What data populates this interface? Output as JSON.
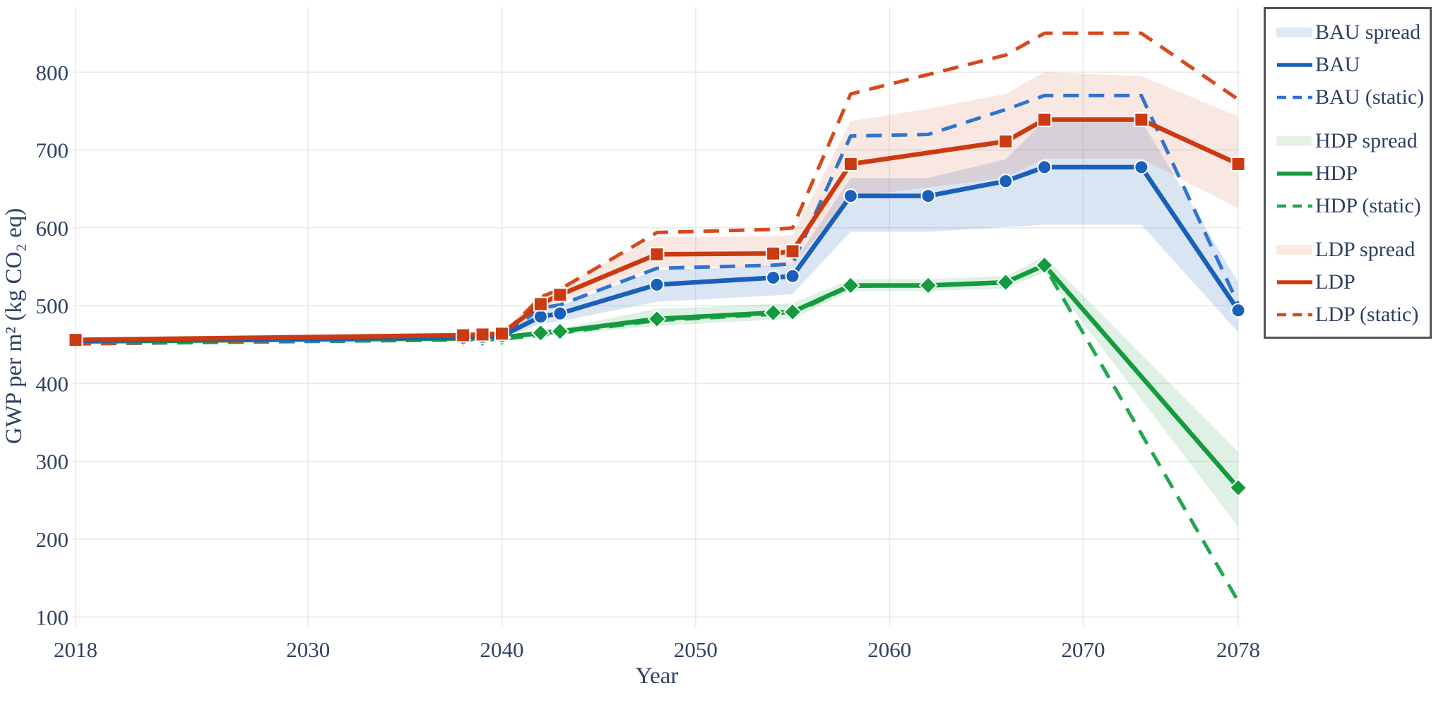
{
  "chart_data": {
    "type": "line",
    "title": "",
    "xlabel": "Year",
    "ylabel": "GWP per m² (kg CO₂ eq)",
    "x_ticks": [
      "2018",
      "2030",
      "2040",
      "2050",
      "2060",
      "2070",
      "2078"
    ],
    "x_tick_years": [
      2018,
      2030,
      2040,
      2050,
      2060,
      2070,
      2078
    ],
    "y_ticks": [
      100,
      200,
      300,
      400,
      500,
      600,
      700,
      800
    ],
    "xlim": [
      2018,
      2078
    ],
    "ylim": [
      85,
      885
    ],
    "grid": true,
    "legend_position": "top-right",
    "colors": {
      "bau": "#1a60ba",
      "bau_dashed": "#2f74d0",
      "bau_band_fill": "rgba(26,96,186,0.16)",
      "bau_band_swatch": "#dde9f7",
      "hdp": "#149b3d",
      "hdp_dashed": "#21a74e",
      "hdp_band_fill": "rgba(20,155,61,0.14)",
      "hdp_band_swatch": "#e3f2e7",
      "ldp": "#cb3a10",
      "ldp_dashed": "#d6491d",
      "ldp_band_fill": "rgba(203,58,16,0.12)",
      "ldp_band_swatch": "#fbe8e1"
    },
    "bands": [
      {
        "name": "BAU spread",
        "series": "bau",
        "x": [
          2018,
          2038,
          2039,
          2040,
          2042,
          2043,
          2048,
          2054,
          2055,
          2058,
          2062,
          2066,
          2068,
          2073,
          2078
        ],
        "upper": [
          458,
          463,
          464,
          466,
          496,
          500,
          546,
          551,
          553,
          664,
          664,
          688,
          738,
          738,
          530
        ],
        "lower": [
          452,
          455,
          456,
          457,
          477,
          480,
          505,
          513,
          515,
          595,
          595,
          601,
          604,
          604,
          466
        ]
      },
      {
        "name": "HDP spread",
        "series": "hdp",
        "x": [
          2018,
          2038,
          2039,
          2040,
          2042,
          2043,
          2048,
          2054,
          2055,
          2058,
          2062,
          2066,
          2068,
          2078
        ],
        "upper": [
          456,
          460,
          460,
          461,
          469,
          471,
          496,
          502,
          503,
          534,
          534,
          538,
          563,
          312
        ],
        "lower": [
          452,
          455,
          455,
          456,
          461,
          463,
          474,
          482,
          483,
          519,
          519,
          522,
          543,
          216
        ]
      },
      {
        "name": "LDP spread",
        "series": "ldp",
        "x": [
          2018,
          2038,
          2039,
          2040,
          2042,
          2043,
          2048,
          2054,
          2055,
          2058,
          2062,
          2066,
          2068,
          2073,
          2078
        ],
        "upper": [
          459,
          466,
          467,
          468,
          512,
          524,
          588,
          589,
          591,
          737,
          753,
          772,
          800,
          795,
          743
        ],
        "lower": [
          453,
          458,
          459,
          460,
          493,
          504,
          549,
          550,
          552,
          640,
          652,
          664,
          689,
          689,
          625
        ]
      }
    ],
    "lines_dashed": [
      {
        "name": "HDP (static)",
        "series": "hdp",
        "x": [
          2018,
          2038,
          2039,
          2040,
          2042,
          2043,
          2048,
          2054,
          2055,
          2058,
          2062,
          2066,
          2068,
          2078
        ],
        "y": [
          451,
          456,
          456,
          457,
          462,
          465,
          481,
          489,
          490,
          525,
          526,
          530,
          551,
          120
        ]
      },
      {
        "name": "BAU (static)",
        "series": "bau",
        "x": [
          2018,
          2038,
          2039,
          2040,
          2042,
          2043,
          2048,
          2054,
          2055,
          2058,
          2062,
          2066,
          2068,
          2073,
          2078
        ],
        "y": [
          451,
          457,
          458,
          459,
          497,
          501,
          548,
          552,
          554,
          718,
          720,
          752,
          770,
          770,
          502
        ]
      },
      {
        "name": "LDP (static)",
        "series": "ldp",
        "x": [
          2018,
          2038,
          2039,
          2040,
          2042,
          2043,
          2048,
          2054,
          2055,
          2058,
          2066,
          2068,
          2073,
          2078
        ],
        "y": [
          451,
          459,
          460,
          461,
          511,
          521,
          594,
          598,
          600,
          772,
          822,
          850,
          850,
          765
        ]
      }
    ],
    "lines_solid": [
      {
        "name": "HDP",
        "series": "hdp",
        "marker": "diamond",
        "x": [
          2018,
          2038,
          2039,
          2040,
          2042,
          2043,
          2048,
          2054,
          2055,
          2058,
          2062,
          2066,
          2068,
          2078
        ],
        "y": [
          454,
          458,
          458,
          459,
          465,
          467,
          483,
          491,
          492,
          526,
          526,
          530,
          552,
          266
        ]
      },
      {
        "name": "BAU",
        "series": "bau",
        "marker": "circle",
        "x": [
          2018,
          2038,
          2039,
          2040,
          2042,
          2043,
          2048,
          2054,
          2055,
          2058,
          2062,
          2066,
          2068,
          2073,
          2078
        ],
        "y": [
          455,
          459,
          460,
          461,
          486,
          490,
          527,
          536,
          538,
          641,
          641,
          660,
          678,
          678,
          494
        ]
      },
      {
        "name": "LDP",
        "series": "ldp",
        "marker": "square",
        "x": [
          2018,
          2038,
          2039,
          2040,
          2042,
          2043,
          2048,
          2054,
          2055,
          2058,
          2066,
          2068,
          2073,
          2078
        ],
        "y": [
          456,
          462,
          463,
          464,
          502,
          514,
          566,
          567,
          570,
          682,
          711,
          739,
          739,
          682
        ]
      }
    ]
  },
  "legend": {
    "items": [
      {
        "label": "BAU spread"
      },
      {
        "label": "BAU"
      },
      {
        "label": "BAU (static)"
      },
      {
        "label": "HDP spread"
      },
      {
        "label": "HDP"
      },
      {
        "label": "HDP (static)"
      },
      {
        "label": "LDP spread"
      },
      {
        "label": "LDP"
      },
      {
        "label": "LDP (static)"
      }
    ]
  },
  "axis": {
    "text_color": "#2d4164",
    "grid_color": "#e9e9ec"
  }
}
